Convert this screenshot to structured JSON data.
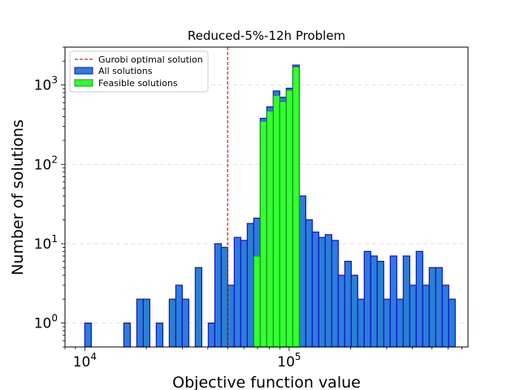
{
  "chart_data": {
    "type": "bar",
    "title": "Reduced-5%-12h Problem",
    "xlabel": "Objective function value",
    "ylabel": "Number of solutions",
    "xscale": "log",
    "yscale": "log",
    "xlim": [
      8000,
      750000
    ],
    "ylim": [
      0.5,
      3000
    ],
    "x_ticks": [
      {
        "base": "10",
        "exp": "4",
        "value": 10000
      },
      {
        "base": "10",
        "exp": "5",
        "value": 100000
      }
    ],
    "y_ticks": [
      {
        "base": "10",
        "exp": "0",
        "value": 1
      },
      {
        "base": "10",
        "exp": "1",
        "value": 10
      },
      {
        "base": "10",
        "exp": "2",
        "value": 100
      },
      {
        "base": "10",
        "exp": "3",
        "value": 1000
      }
    ],
    "grid": "y-dashed",
    "legend_position": "top-left",
    "reference_line": {
      "name": "Gurobi optimal solution",
      "x": 50000,
      "color": "#e41a1c",
      "style": "dashed"
    },
    "bin_edges_log10": {
      "start": 4.0,
      "width": 0.0318
    },
    "series": [
      {
        "name": "All solutions",
        "fill": "#2a7fd4",
        "edge": "#1010d8",
        "values": [
          1,
          0,
          0,
          0,
          0,
          0,
          1,
          0,
          2,
          2,
          0,
          1,
          0,
          2,
          3,
          2,
          0,
          5,
          0,
          1,
          10,
          9,
          3,
          12,
          11,
          18,
          21,
          380,
          530,
          840,
          700,
          910,
          1780,
          40,
          20,
          14,
          12,
          13,
          11,
          4,
          6,
          4,
          2,
          8,
          7,
          6,
          2,
          7,
          2,
          7,
          3,
          8,
          3,
          5,
          5,
          3,
          2
        ]
      },
      {
        "name": "Feasible solutions",
        "fill": "#33ff33",
        "edge": "#119911",
        "values": [
          0,
          0,
          0,
          0,
          0,
          0,
          0,
          0,
          0,
          0,
          0,
          0,
          0,
          0,
          0,
          0,
          0,
          0,
          0,
          0,
          0,
          0,
          0,
          0,
          0,
          0,
          7,
          350,
          470,
          740,
          620,
          860,
          1690,
          0,
          0,
          0,
          0,
          0,
          0,
          0,
          0,
          0,
          0,
          0,
          0,
          0,
          0,
          0,
          0,
          0,
          0,
          0,
          0,
          0,
          0,
          0,
          0
        ]
      }
    ]
  }
}
